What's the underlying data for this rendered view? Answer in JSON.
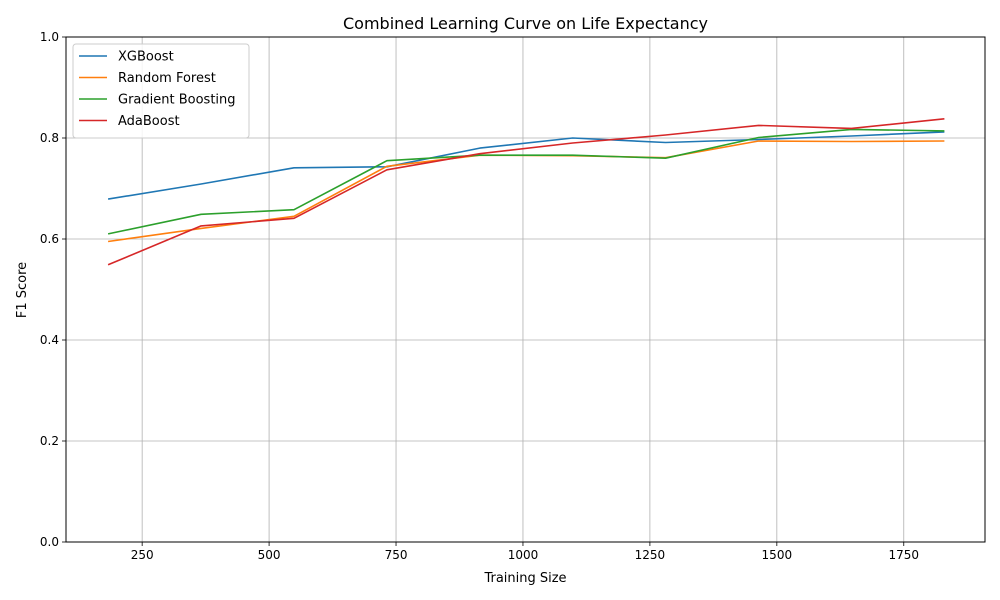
{
  "chart_data": {
    "type": "line",
    "title": "Combined Learning Curve on Life Expectancy",
    "xlabel": "Training Size",
    "ylabel": "F1 Score",
    "xlim": [
      100,
      1910
    ],
    "ylim": [
      0,
      1.0
    ],
    "xticks": [
      250,
      500,
      750,
      1000,
      1250,
      1500,
      1750
    ],
    "yticks": [
      0.0,
      0.2,
      0.4,
      0.6,
      0.8,
      1.0
    ],
    "xtick_labels": [
      "250",
      "500",
      "750",
      "1000",
      "1250",
      "1500",
      "1750"
    ],
    "ytick_labels": [
      "0.0",
      "0.2",
      "0.4",
      "0.6",
      "0.8",
      "1.0"
    ],
    "grid": true,
    "legend_position": "upper-left",
    "x": [
      183,
      366,
      549,
      732,
      915,
      1098,
      1281,
      1464,
      1647,
      1830
    ],
    "series": [
      {
        "name": "XGBoost",
        "color": "#1f77b4",
        "values": [
          0.679,
          0.709,
          0.741,
          0.743,
          0.78,
          0.8,
          0.791,
          0.797,
          0.804,
          0.812
        ]
      },
      {
        "name": "Random Forest",
        "color": "#ff7f0e",
        "values": [
          0.595,
          0.621,
          0.645,
          0.744,
          0.766,
          0.765,
          0.761,
          0.794,
          0.793,
          0.794
        ]
      },
      {
        "name": "Gradient Boosting",
        "color": "#2ca02c",
        "values": [
          0.61,
          0.649,
          0.658,
          0.755,
          0.766,
          0.766,
          0.76,
          0.801,
          0.817,
          0.814
        ]
      },
      {
        "name": "AdaBoost",
        "color": "#d62728",
        "values": [
          0.549,
          0.626,
          0.641,
          0.737,
          0.769,
          0.79,
          0.806,
          0.825,
          0.819,
          0.838
        ]
      }
    ]
  }
}
